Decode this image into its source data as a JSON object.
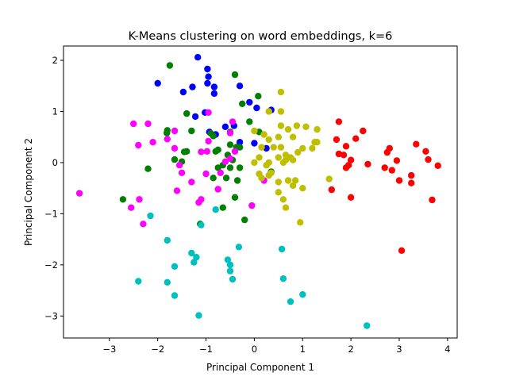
{
  "chart_data": {
    "type": "scatter",
    "title": "K-Means clustering on word embeddings, k=6",
    "xlabel": "Principal Component 1",
    "ylabel": "Principal Component 2",
    "xlim": [
      -3.95,
      4.2
    ],
    "ylim": [
      -3.43,
      2.28
    ],
    "xticks": [
      -3,
      -2,
      -1,
      0,
      1,
      2,
      3,
      4
    ],
    "yticks": [
      -3,
      -2,
      -1,
      0,
      1,
      2
    ],
    "xtick_labels": [
      "−3",
      "−2",
      "−1",
      "0",
      "1",
      "2",
      "3",
      "4"
    ],
    "ytick_labels": [
      "−3",
      "−2",
      "−1",
      "0",
      "1",
      "2"
    ],
    "grid": false,
    "legend": "none",
    "series": [
      {
        "color": "#0000ff",
        "points": [
          [
            -2.0,
            1.55
          ],
          [
            -1.47,
            1.38
          ],
          [
            -1.28,
            1.48
          ],
          [
            -1.17,
            2.06
          ],
          [
            -0.97,
            1.83
          ],
          [
            -0.95,
            1.68
          ],
          [
            -0.97,
            1.55
          ],
          [
            -0.83,
            1.35
          ],
          [
            -0.83,
            1.48
          ],
          [
            -1.22,
            0.9
          ],
          [
            -1.02,
            0.98
          ],
          [
            -0.93,
            0.6
          ],
          [
            -0.8,
            0.55
          ],
          [
            -0.6,
            0.7
          ],
          [
            -0.3,
            1.5
          ],
          [
            -0.1,
            1.18
          ],
          [
            0.05,
            1.07
          ],
          [
            0.35,
            1.03
          ],
          [
            -0.42,
            0.72
          ],
          [
            0.25,
            0.28
          ],
          [
            0.0,
            0.38
          ],
          [
            -0.3,
            0.4
          ]
        ]
      },
      {
        "color": "#008000",
        "points": [
          [
            -1.75,
            1.9
          ],
          [
            -0.4,
            1.72
          ],
          [
            0.08,
            1.3
          ],
          [
            -1.4,
            0.96
          ],
          [
            -0.25,
            1.15
          ],
          [
            -1.8,
            0.63
          ],
          [
            -1.81,
            0.58
          ],
          [
            -1.3,
            0.62
          ],
          [
            -0.9,
            0.57
          ],
          [
            -0.85,
            0.52
          ],
          [
            -0.5,
            0.6
          ],
          [
            -0.1,
            0.8
          ],
          [
            0.1,
            0.6
          ],
          [
            -0.5,
            0.35
          ],
          [
            -0.3,
            0.3
          ],
          [
            -0.37,
            0.3
          ],
          [
            -1.45,
            0.21
          ],
          [
            -1.4,
            0.22
          ],
          [
            -0.8,
            0.22
          ],
          [
            -0.75,
            0.25
          ],
          [
            -1.65,
            0.06
          ],
          [
            -1.5,
            0.02
          ],
          [
            -0.45,
            0.05
          ],
          [
            -0.55,
            0.15
          ],
          [
            -2.2,
            -0.12
          ],
          [
            -0.75,
            -0.1
          ],
          [
            -0.65,
            -0.05
          ],
          [
            -0.5,
            -0.1
          ],
          [
            -0.3,
            -0.1
          ],
          [
            -0.58,
            -0.3
          ],
          [
            -0.85,
            -0.3
          ],
          [
            -0.35,
            -0.35
          ],
          [
            -0.4,
            -0.68
          ],
          [
            -0.65,
            -0.88
          ],
          [
            -2.72,
            -0.72
          ],
          [
            -1.12,
            -1.2
          ],
          [
            -0.2,
            -1.12
          ],
          [
            0.35,
            -0.18
          ]
        ]
      },
      {
        "color": "#ff00ff",
        "points": [
          [
            -2.5,
            0.76
          ],
          [
            -2.2,
            0.76
          ],
          [
            -1.65,
            0.62
          ],
          [
            -0.95,
            0.98
          ],
          [
            -0.95,
            0.42
          ],
          [
            -0.5,
            0.58
          ],
          [
            -0.45,
            0.8
          ],
          [
            -2.4,
            0.34
          ],
          [
            -2.1,
            0.4
          ],
          [
            -1.8,
            0.46
          ],
          [
            -1.65,
            0.28
          ],
          [
            -1.1,
            0.21
          ],
          [
            -0.98,
            0.22
          ],
          [
            -0.4,
            0.22
          ],
          [
            -0.5,
            0.08
          ],
          [
            -1.55,
            -0.05
          ],
          [
            -1.5,
            -0.2
          ],
          [
            -1.3,
            -0.38
          ],
          [
            -1.0,
            -0.22
          ],
          [
            -0.7,
            -0.2
          ],
          [
            -0.6,
            0.02
          ],
          [
            -2.55,
            -0.88
          ],
          [
            -2.3,
            -1.2
          ],
          [
            -2.38,
            -0.72
          ],
          [
            -3.62,
            -0.6
          ],
          [
            -1.6,
            -0.55
          ],
          [
            -1.15,
            -0.78
          ],
          [
            -1.1,
            -0.72
          ],
          [
            -0.75,
            -0.52
          ],
          [
            -0.05,
            -0.84
          ],
          [
            0.2,
            -0.35
          ]
        ]
      },
      {
        "color": "#bfbf00",
        "points": [
          [
            0.55,
            1.38
          ],
          [
            0.3,
            1.0
          ],
          [
            0.55,
            1.0
          ],
          [
            0.55,
            0.72
          ],
          [
            0.7,
            0.65
          ],
          [
            0.88,
            0.72
          ],
          [
            1.07,
            0.7
          ],
          [
            1.3,
            0.65
          ],
          [
            0.0,
            0.62
          ],
          [
            0.2,
            0.55
          ],
          [
            0.5,
            0.5
          ],
          [
            0.8,
            0.5
          ],
          [
            1.25,
            0.4
          ],
          [
            0.3,
            0.45
          ],
          [
            0.15,
            0.3
          ],
          [
            0.4,
            0.3
          ],
          [
            0.55,
            0.3
          ],
          [
            1.0,
            0.28
          ],
          [
            1.2,
            0.28
          ],
          [
            0.65,
            0.15
          ],
          [
            0.9,
            0.2
          ],
          [
            1.3,
            0.4
          ],
          [
            0.1,
            0.1
          ],
          [
            0.5,
            0.1
          ],
          [
            0.65,
            0.05
          ],
          [
            0.75,
            0.1
          ],
          [
            0.0,
            0.0
          ],
          [
            0.3,
            0.0
          ],
          [
            0.6,
            0.0
          ],
          [
            0.8,
            0.05
          ],
          [
            0.25,
            -0.05
          ],
          [
            0.1,
            -0.22
          ],
          [
            0.35,
            -0.2
          ],
          [
            0.3,
            -0.25
          ],
          [
            0.7,
            -0.35
          ],
          [
            0.85,
            -0.35
          ],
          [
            0.5,
            -0.38
          ],
          [
            0.8,
            -0.45
          ],
          [
            1.0,
            -0.5
          ],
          [
            1.55,
            -0.32
          ],
          [
            0.5,
            -0.58
          ],
          [
            0.6,
            -0.72
          ],
          [
            0.65,
            -0.88
          ],
          [
            0.95,
            -1.17
          ],
          [
            0.15,
            -0.3
          ]
        ]
      },
      {
        "color": "#ff0000",
        "points": [
          [
            1.75,
            0.8
          ],
          [
            2.25,
            0.62
          ],
          [
            3.35,
            0.36
          ],
          [
            1.7,
            0.45
          ],
          [
            2.1,
            0.47
          ],
          [
            1.9,
            0.32
          ],
          [
            2.75,
            0.2
          ],
          [
            2.8,
            0.28
          ],
          [
            3.55,
            0.22
          ],
          [
            1.75,
            0.17
          ],
          [
            1.85,
            0.15
          ],
          [
            2.0,
            0.05
          ],
          [
            2.95,
            0.04
          ],
          [
            3.6,
            0.06
          ],
          [
            1.95,
            -0.05
          ],
          [
            2.35,
            -0.03
          ],
          [
            2.7,
            -0.1
          ],
          [
            2.85,
            -0.15
          ],
          [
            3.8,
            -0.06
          ],
          [
            1.9,
            -0.1
          ],
          [
            3.25,
            -0.25
          ],
          [
            3.25,
            -0.4
          ],
          [
            3.0,
            -0.35
          ],
          [
            1.6,
            -0.53
          ],
          [
            2.0,
            -0.68
          ],
          [
            3.68,
            -0.73
          ],
          [
            3.05,
            -1.72
          ]
        ]
      },
      {
        "color": "#00bfbf",
        "points": [
          [
            -2.15,
            -1.04
          ],
          [
            -1.1,
            -1.22
          ],
          [
            -0.8,
            -0.92
          ],
          [
            -1.8,
            -1.52
          ],
          [
            -0.32,
            -1.65
          ],
          [
            -1.3,
            -1.77
          ],
          [
            -1.2,
            -1.85
          ],
          [
            -1.25,
            -1.95
          ],
          [
            -0.55,
            -1.9
          ],
          [
            -0.5,
            -2.0
          ],
          [
            -0.5,
            -2.12
          ],
          [
            -0.45,
            -2.28
          ],
          [
            -1.65,
            -2.03
          ],
          [
            -2.4,
            -2.32
          ],
          [
            -1.8,
            -2.34
          ],
          [
            -1.65,
            -2.6
          ],
          [
            0.6,
            -2.27
          ],
          [
            0.57,
            -1.69
          ],
          [
            0.75,
            -2.72
          ],
          [
            1.0,
            -2.58
          ],
          [
            -1.15,
            -2.99
          ],
          [
            2.33,
            -3.19
          ]
        ]
      }
    ]
  }
}
